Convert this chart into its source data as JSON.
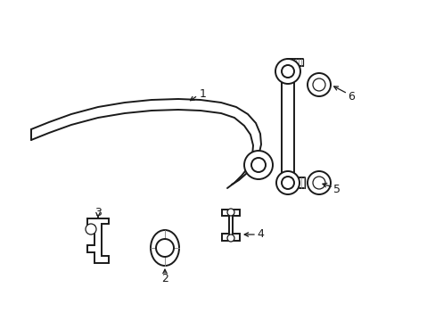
{
  "background_color": "#ffffff",
  "line_color": "#1a1a1a",
  "figsize": [
    4.89,
    3.6
  ],
  "dpi": 100,
  "lw_main": 1.4,
  "lw_thin": 0.9,
  "label_fontsize": 9,
  "label_color": "#1a1a1a"
}
